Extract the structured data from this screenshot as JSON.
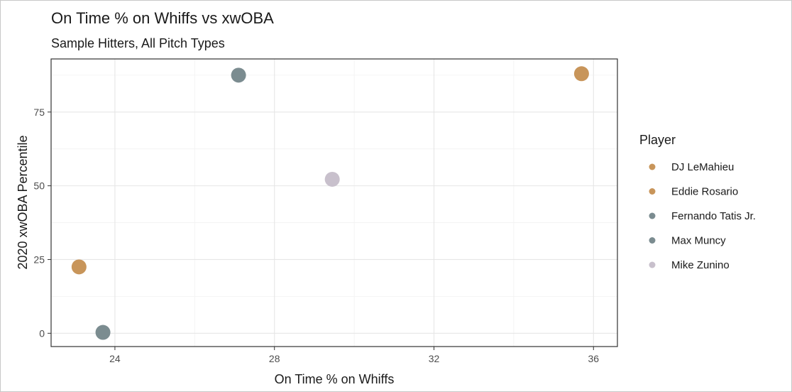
{
  "chart_data": {
    "type": "scatter",
    "title": "On Time % on Whiffs vs xwOBA",
    "subtitle": "Sample Hitters, All Pitch Types",
    "xlabel": "On Time % on Whiffs",
    "ylabel": "2020 xwOBA Percentile",
    "xlim": [
      22.4,
      36.6
    ],
    "ylim": [
      -4.5,
      93
    ],
    "x_ticks": [
      24,
      28,
      32,
      36
    ],
    "y_ticks": [
      0,
      25,
      50,
      75
    ],
    "grid": true,
    "legend": {
      "title": "Player",
      "position": "right"
    },
    "series": [
      {
        "name": "DJ LeMahieu",
        "color": "#c8955a",
        "points": [
          {
            "x": 35.7,
            "y": 88
          }
        ]
      },
      {
        "name": "Eddie Rosario",
        "color": "#c8955a",
        "points": [
          {
            "x": 23.1,
            "y": 22.5
          }
        ]
      },
      {
        "name": "Fernando Tatis Jr.",
        "color": "#7b8c90",
        "points": [
          {
            "x": 27.1,
            "y": 87.5
          }
        ]
      },
      {
        "name": "Max Muncy",
        "color": "#7b8c90",
        "points": [
          {
            "x": 23.7,
            "y": 0.3
          }
        ]
      },
      {
        "name": "Mike Zunino",
        "color": "#c8c0cc",
        "points": [
          {
            "x": 29.45,
            "y": 52.2
          }
        ]
      }
    ]
  }
}
